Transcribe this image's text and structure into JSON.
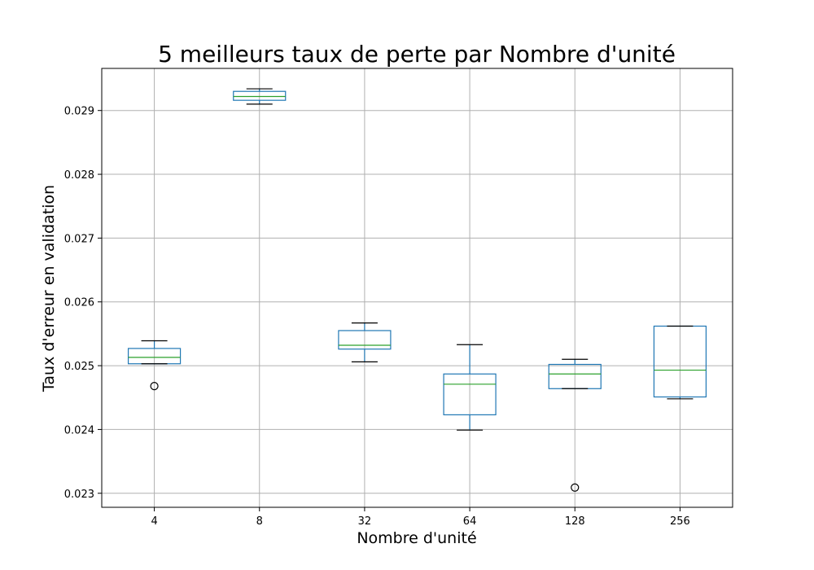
{
  "chart_data": {
    "type": "box",
    "title": "5 meilleurs taux de perte par Nombre d'unité",
    "xlabel": "Nombre d'unité",
    "ylabel": "Taux d'erreur en validation",
    "ylim": [
      0.02278,
      0.02966
    ],
    "yticks": [
      "0.023",
      "0.024",
      "0.025",
      "0.026",
      "0.027",
      "0.028",
      "0.029"
    ],
    "grid": true,
    "categories": [
      "4",
      "8",
      "32",
      "64",
      "128",
      "256"
    ],
    "boxes": [
      {
        "category": "4",
        "whisker_low": 0.02503,
        "q1": 0.02503,
        "median": 0.02513,
        "q3": 0.02527,
        "whisker_high": 0.02539,
        "outliers": [
          0.02468
        ]
      },
      {
        "category": "8",
        "whisker_low": 0.0291,
        "q1": 0.02916,
        "median": 0.02922,
        "q3": 0.0293,
        "whisker_high": 0.02934,
        "outliers": []
      },
      {
        "category": "32",
        "whisker_low": 0.02506,
        "q1": 0.02526,
        "median": 0.02532,
        "q3": 0.02555,
        "whisker_high": 0.02567,
        "outliers": []
      },
      {
        "category": "64",
        "whisker_low": 0.02399,
        "q1": 0.02423,
        "median": 0.02471,
        "q3": 0.02487,
        "whisker_high": 0.02533,
        "outliers": []
      },
      {
        "category": "128",
        "whisker_low": 0.02464,
        "q1": 0.02464,
        "median": 0.02487,
        "q3": 0.02502,
        "whisker_high": 0.0251,
        "outliers": [
          0.02309
        ]
      },
      {
        "category": "256",
        "whisker_low": 0.02448,
        "q1": 0.02451,
        "median": 0.02493,
        "q3": 0.02562,
        "whisker_high": 0.02562,
        "outliers": []
      }
    ],
    "colors": {
      "box": "#1f77b4",
      "median": "#2ca02c",
      "whisker_cap": "#000000",
      "grid": "#b0b0b0",
      "axes": "#000000"
    }
  }
}
